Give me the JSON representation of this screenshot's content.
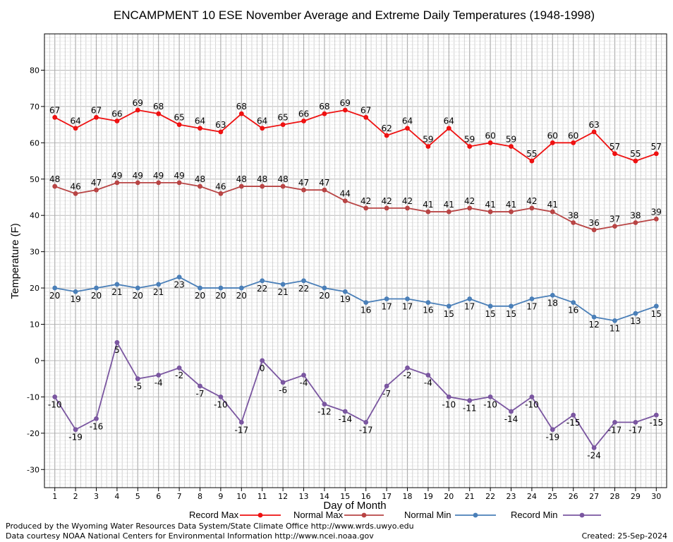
{
  "chart_data": {
    "type": "line",
    "title": "ENCAMPMENT 10 ESE November Average and Extreme Daily Temperatures (1948-1998)",
    "xlabel": "Day of Month",
    "ylabel": "Temperature (F)",
    "x": [
      1,
      2,
      3,
      4,
      5,
      6,
      7,
      8,
      9,
      10,
      11,
      12,
      13,
      14,
      15,
      16,
      17,
      18,
      19,
      20,
      21,
      22,
      23,
      24,
      25,
      26,
      27,
      28,
      29,
      30
    ],
    "xlim": [
      0.5,
      30.5
    ],
    "ylim": [
      -35,
      90
    ],
    "yticks": [
      -30,
      -20,
      -10,
      0,
      10,
      20,
      30,
      40,
      50,
      60,
      70,
      80
    ],
    "grid": true,
    "legend_position": "bottom",
    "series": [
      {
        "name": "Record Max",
        "color": "#ee1111",
        "values": [
          67,
          64,
          67,
          66,
          69,
          68,
          65,
          64,
          63,
          68,
          64,
          65,
          66,
          68,
          69,
          67,
          62,
          64,
          59,
          64,
          59,
          60,
          59,
          55,
          60,
          60,
          63,
          57,
          55,
          57
        ]
      },
      {
        "name": "Normal Max",
        "color": "#b84444",
        "values": [
          48,
          46,
          47,
          49,
          49,
          49,
          49,
          48,
          46,
          48,
          48,
          48,
          47,
          47,
          44,
          42,
          42,
          42,
          41,
          41,
          42,
          41,
          41,
          42,
          41,
          38,
          36,
          37,
          38,
          39
        ]
      },
      {
        "name": "Normal Min",
        "color": "#4a7fb8",
        "values": [
          20,
          19,
          20,
          21,
          20,
          21,
          23,
          20,
          20,
          20,
          22,
          21,
          22,
          20,
          19,
          16,
          17,
          17,
          16,
          15,
          17,
          15,
          15,
          17,
          18,
          16,
          12,
          11,
          13,
          15
        ]
      },
      {
        "name": "Record Min",
        "color": "#7a56a0",
        "values": [
          -10,
          -19,
          -16,
          5,
          -5,
          -4,
          -2,
          -7,
          -10,
          -17,
          0,
          -6,
          -4,
          -12,
          -14,
          -17,
          -7,
          -2,
          -4,
          -10,
          -11,
          -10,
          -14,
          -10,
          -19,
          -15,
          -24,
          -17,
          -17,
          -15
        ]
      }
    ]
  },
  "footer": {
    "produced_by": "Produced by the Wyoming Water Resources Data System/State Climate Office http://www.wrds.uwyo.edu",
    "data_courtesy": "Data courtesy NOAA National Centers for Environmental Information http://www.ncei.noaa.gov",
    "created": "Created:  25-Sep-2024"
  }
}
